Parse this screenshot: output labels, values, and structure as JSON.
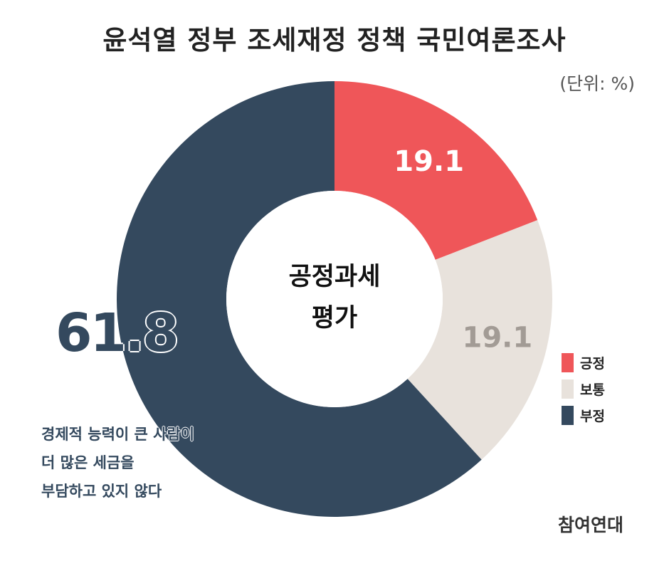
{
  "title": "윤석열 정부 조세재정 정책 국민여론조사",
  "unit": "(단위: %)",
  "center_label": [
    "공정과세",
    "평가"
  ],
  "note_lines": [
    "경제적 능력이 큰 사람이",
    "더 많은 세금을",
    "부담하고 있지 않다"
  ],
  "source": "참여연대",
  "chart_data": {
    "type": "pie",
    "donut": true,
    "categories": [
      "긍정",
      "보통",
      "부정"
    ],
    "values": [
      19.1,
      19.1,
      61.8
    ],
    "value_labels": [
      "19.1",
      "19.1",
      "61.8"
    ],
    "colors": [
      "#ef5659",
      "#e8e2dc",
      "#34495e"
    ],
    "value_label_colors": [
      "#ffffff",
      "#a29b95",
      "#34495e"
    ],
    "legend_position": "right"
  }
}
